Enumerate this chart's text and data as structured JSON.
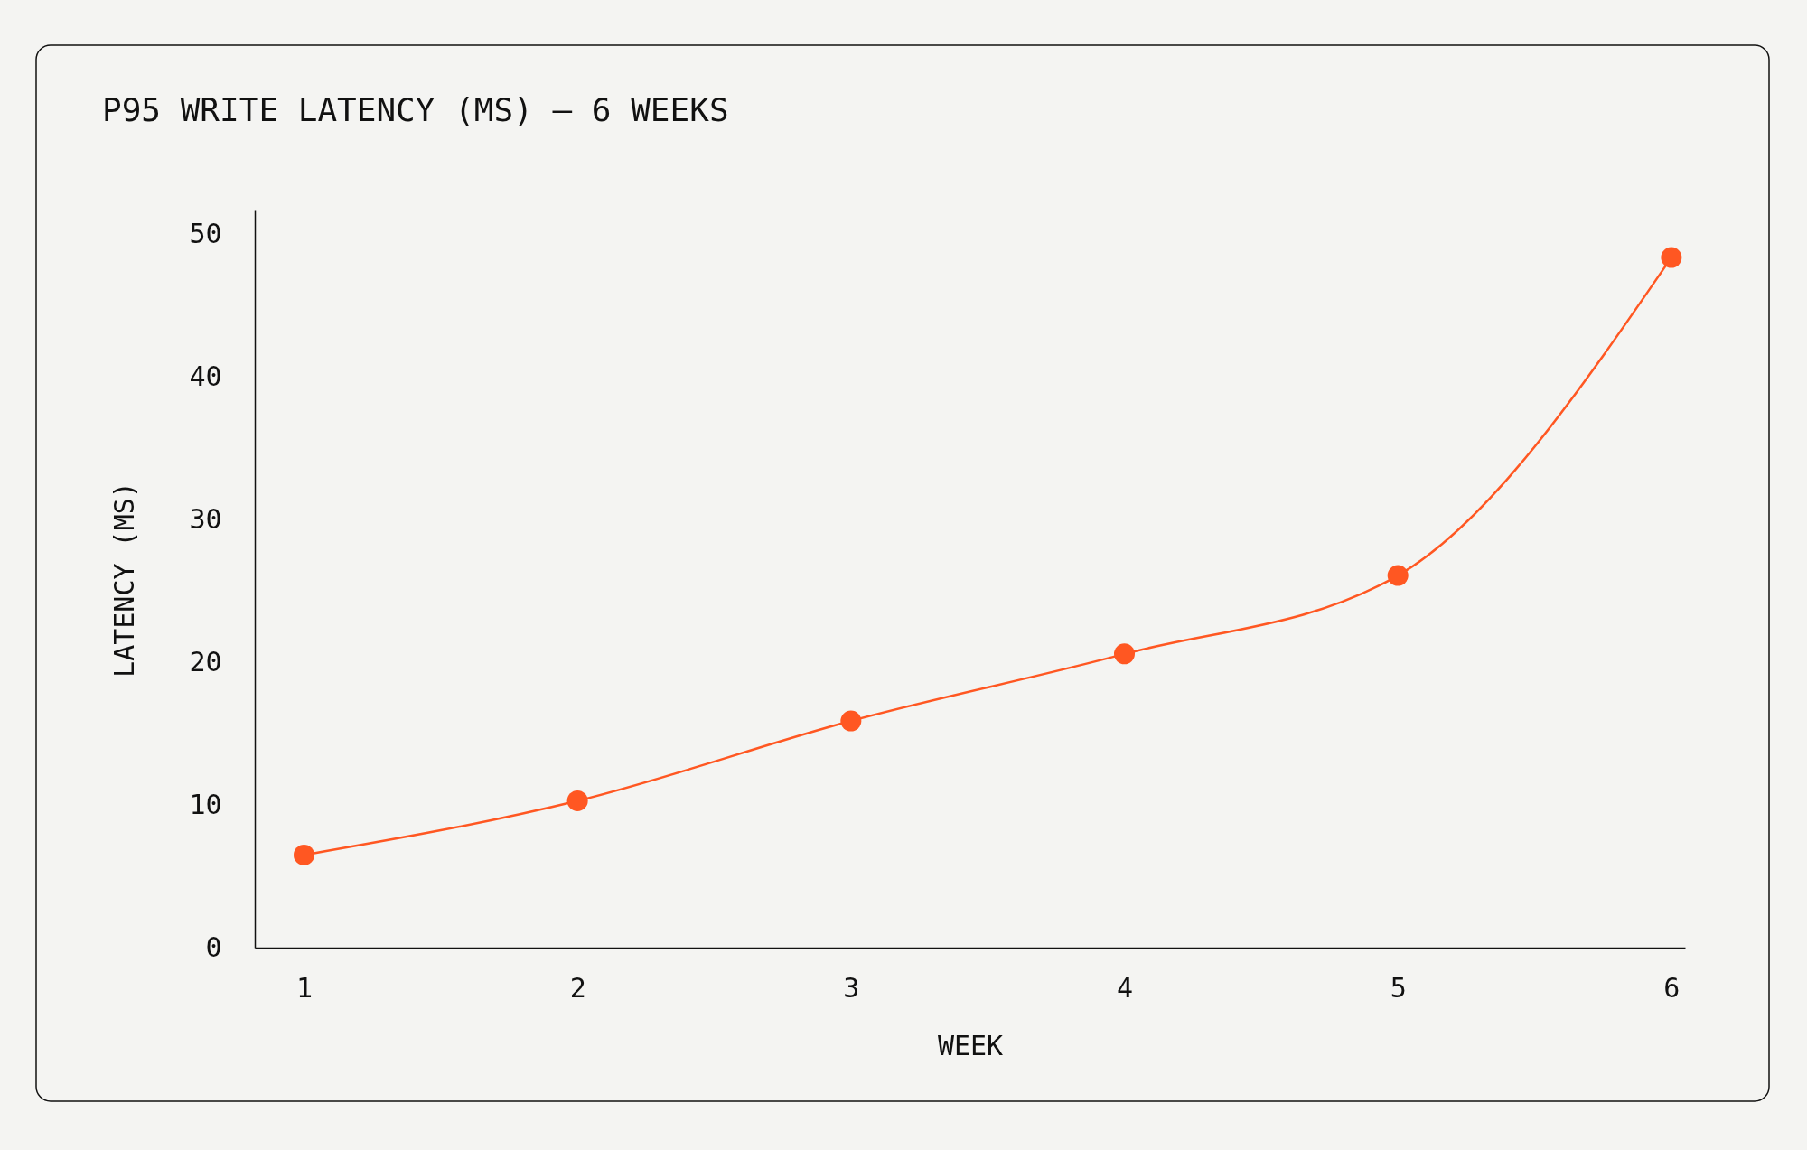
{
  "chart_data": {
    "type": "line",
    "title": "P95 WRITE LATENCY (MS) — 6 WEEKS",
    "xlabel": "WEEK",
    "ylabel": "LATENCY (MS)",
    "x": [
      1,
      2,
      3,
      4,
      5,
      6
    ],
    "series": [
      {
        "color": "#ff5722",
        "values": [
          6.5,
          10.3,
          15.9,
          20.6,
          26.1,
          48.4
        ]
      }
    ],
    "xlim": [
      0.82,
      6.05
    ],
    "ylim": [
      0,
      51.7
    ],
    "xticks": [
      1,
      2,
      3,
      4,
      5,
      6
    ],
    "yticks": [
      0,
      10,
      20,
      30,
      40,
      50
    ],
    "marker": "circle",
    "line_style": "solid"
  }
}
